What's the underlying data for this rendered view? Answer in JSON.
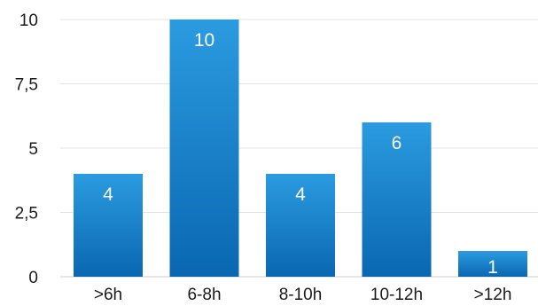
{
  "chart_data": {
    "type": "bar",
    "title": "",
    "xlabel": "",
    "ylabel": "",
    "categories": [
      ">6h",
      "6-8h",
      "8-10h",
      "10-12h",
      ">12h"
    ],
    "values": [
      4,
      10,
      4,
      6,
      1
    ],
    "data_labels": [
      "4",
      "10",
      "4",
      "6",
      "1"
    ],
    "ylim": [
      0,
      10
    ],
    "yticks": [
      0,
      2.5,
      5,
      7.5,
      10
    ],
    "ytick_labels": [
      "0",
      "2,5",
      "5",
      "7,5",
      "10"
    ],
    "grid": true,
    "legend": "none",
    "colors": {
      "bar_top": "#2b9be0",
      "bar_bottom": "#0a67b2",
      "grid": "#e3e3e3",
      "text": "#1a1a1a",
      "data_label": "#ffffff"
    }
  }
}
